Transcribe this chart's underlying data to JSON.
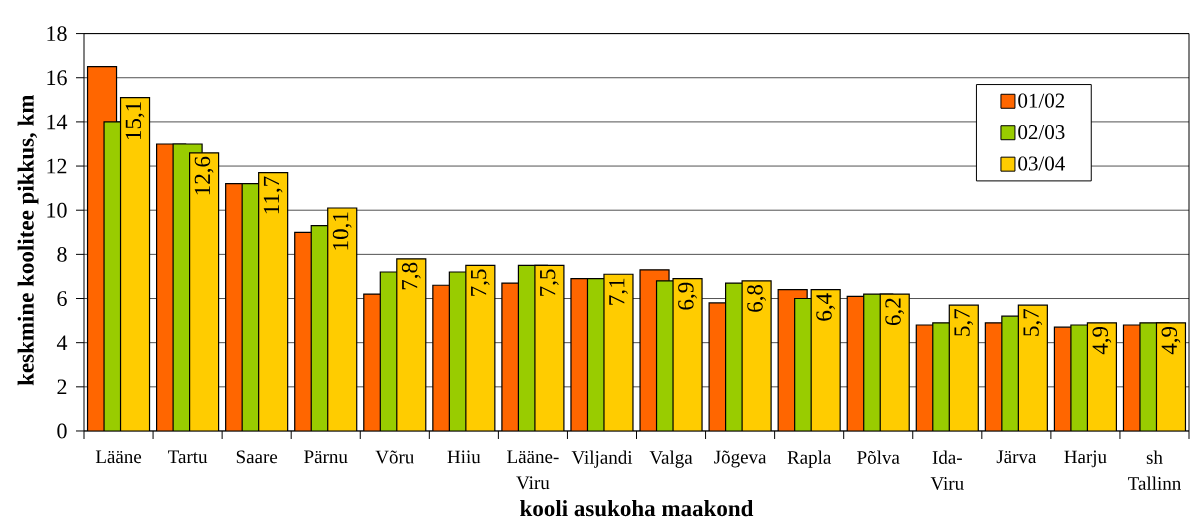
{
  "chart_data": {
    "type": "bar",
    "xlabel": "kooli asukoha maakond",
    "ylabel": "keskmine koolitee pikkus, km",
    "categories": [
      "Lääne",
      "Tartu",
      "Saare",
      "Pärnu",
      "Võru",
      "Hiiu",
      "Lääne-Viru",
      "Viljandi",
      "Valga",
      "Jõgeva",
      "Rapla",
      "Põlva",
      "Ida-Viru",
      "Järva",
      "Harju",
      "sh Tallinn"
    ],
    "series": [
      {
        "name": "01/02",
        "color": "#ff6600",
        "values": [
          16.5,
          13.0,
          11.2,
          9.0,
          6.2,
          6.6,
          6.7,
          6.9,
          7.3,
          5.8,
          6.4,
          6.1,
          4.8,
          4.9,
          4.7,
          4.8
        ]
      },
      {
        "name": "02/03",
        "color": "#99cc00",
        "values": [
          14.0,
          13.0,
          11.2,
          9.3,
          7.2,
          7.2,
          7.5,
          6.9,
          6.8,
          6.7,
          6.0,
          6.2,
          4.9,
          5.2,
          4.8,
          4.9
        ]
      },
      {
        "name": "03/04",
        "color": "#ffcc00",
        "values": [
          15.1,
          12.6,
          11.7,
          10.1,
          7.8,
          7.5,
          7.5,
          7.1,
          6.9,
          6.8,
          6.4,
          6.2,
          5.7,
          5.7,
          4.9,
          4.9
        ],
        "value_labels": [
          "15,1",
          "12,6",
          "11,7",
          "10,1",
          "7,8",
          "7,5",
          "7,5",
          "7,1",
          "6,9",
          "6,8",
          "6,4",
          "6,2",
          "5,7",
          "5,7",
          "4,9",
          "4,9"
        ]
      }
    ],
    "ylim": [
      0,
      18
    ],
    "yticks": [
      0,
      2,
      4,
      6,
      8,
      10,
      12,
      14,
      16,
      18
    ],
    "grid": "y",
    "legend": "top right"
  }
}
